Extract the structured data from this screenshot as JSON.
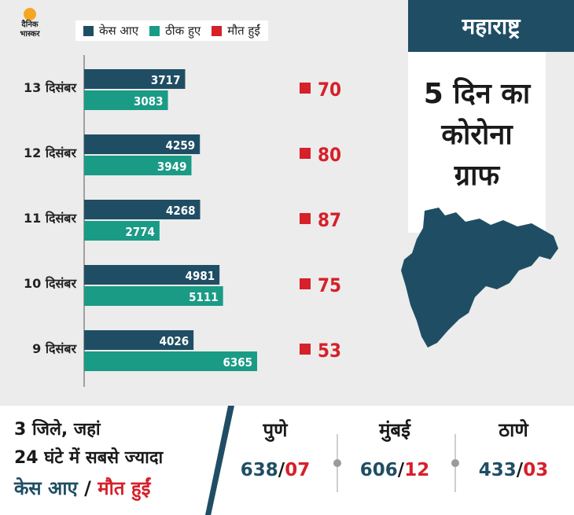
{
  "logo": {
    "line1": "दैनिक",
    "line2": "भास्कर"
  },
  "legend": [
    {
      "label": "केस आए",
      "color": "#1f4e64"
    },
    {
      "label": "ठीक हुए",
      "color": "#1a9b86"
    },
    {
      "label": "मौत हुईं",
      "color": "#d6202a"
    }
  ],
  "chart_data": {
    "type": "bar",
    "orientation": "horizontal",
    "categories": [
      "13 दिसंबर",
      "12 दिसंबर",
      "11 दिसंबर",
      "10 दिसंबर",
      "9 दिसंबर"
    ],
    "series": [
      {
        "name": "केस आए",
        "values": [
          3717,
          4259,
          4268,
          4981,
          4026
        ],
        "color": "#1f4e64"
      },
      {
        "name": "ठीक हुए",
        "values": [
          3083,
          3949,
          2774,
          5111,
          6365
        ],
        "color": "#1a9b86"
      },
      {
        "name": "मौत हुईं",
        "values": [
          70,
          80,
          87,
          75,
          53
        ],
        "color": "#d6202a"
      }
    ],
    "value_labels": {
      "cases": [
        "3717",
        "4259",
        "4268",
        "4981",
        "4026"
      ],
      "recovered": [
        "3083",
        "3949",
        "2774",
        "5111",
        "6365"
      ],
      "deaths": [
        "70",
        "80",
        "87",
        "75",
        "53"
      ]
    },
    "xlim": [
      0,
      7000
    ]
  },
  "panel": {
    "state": "महाराष्ट्र",
    "heading_line1": "5 दिन का",
    "heading_line2": "कोरोना",
    "heading_line3": "ग्राफ"
  },
  "bottom": {
    "line1": "3 जिले, जहां",
    "line2": "24 घंटे में सबसे ज्यादा",
    "cases_label": "केस आए",
    "separator": " / ",
    "deaths_label": "मौत हुईं",
    "cities": [
      {
        "name": "पुणे",
        "cases": "638",
        "deaths": "07"
      },
      {
        "name": "मुंबई",
        "cases": "606",
        "deaths": "12"
      },
      {
        "name": "ठाणे",
        "cases": "433",
        "deaths": "03"
      }
    ],
    "slash": "/"
  }
}
